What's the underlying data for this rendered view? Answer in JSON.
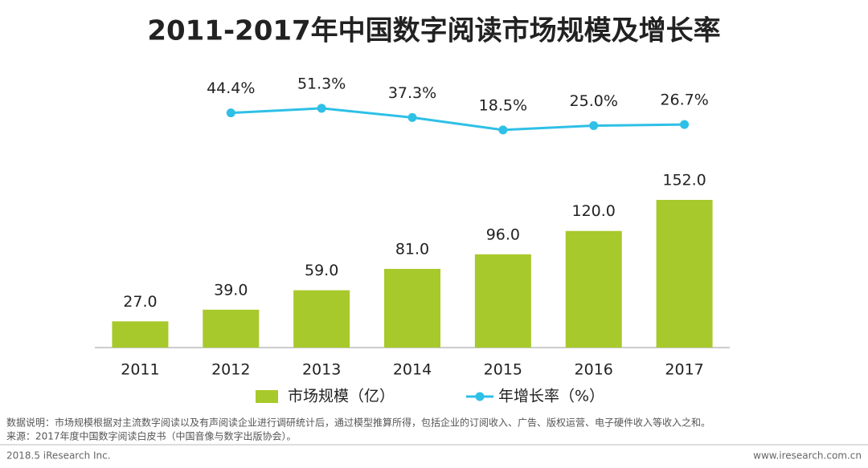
{
  "chart_data": {
    "type": "bar",
    "title": "2011-2017年中国数字阅读市场规模及增长率",
    "categories": [
      "2011",
      "2012",
      "2013",
      "2014",
      "2015",
      "2016",
      "2017"
    ],
    "series": [
      {
        "name": "市场规模（亿）",
        "type": "bar",
        "color": "#a8c92b",
        "values": [
          27,
          39,
          59,
          81,
          96,
          120,
          152
        ],
        "value_labels": [
          "27.0",
          "39.0",
          "59.0",
          "81.0",
          "96.0",
          "120.0",
          "152.0"
        ]
      },
      {
        "name": "年增长率（%）",
        "type": "line",
        "axis": "y2",
        "color": "#2ec0e6",
        "values": [
          null,
          44.4,
          51.3,
          37.3,
          18.5,
          25.0,
          26.7
        ],
        "value_labels": [
          null,
          "44.4%",
          "51.3%",
          "37.3%",
          "18.5%",
          "25.0%",
          "26.7%"
        ]
      }
    ],
    "ylim": [
      0,
      190
    ],
    "y2lim": [
      0,
      100
    ],
    "legend": "bottom"
  },
  "notes": [
    "数据说明：市场规模根据对主流数字阅读以及有声阅读企业进行调研统计后，通过模型推算所得，包括企业的订阅收入、广告、版权运营、电子硬件收入等收入之和。",
    "来源：2017年度中国数字阅读白皮书（中国音像与数字出版协会）。"
  ],
  "footer": {
    "left": "2018.5 iResearch Inc.",
    "right": "www.iresearch.com.cn"
  }
}
